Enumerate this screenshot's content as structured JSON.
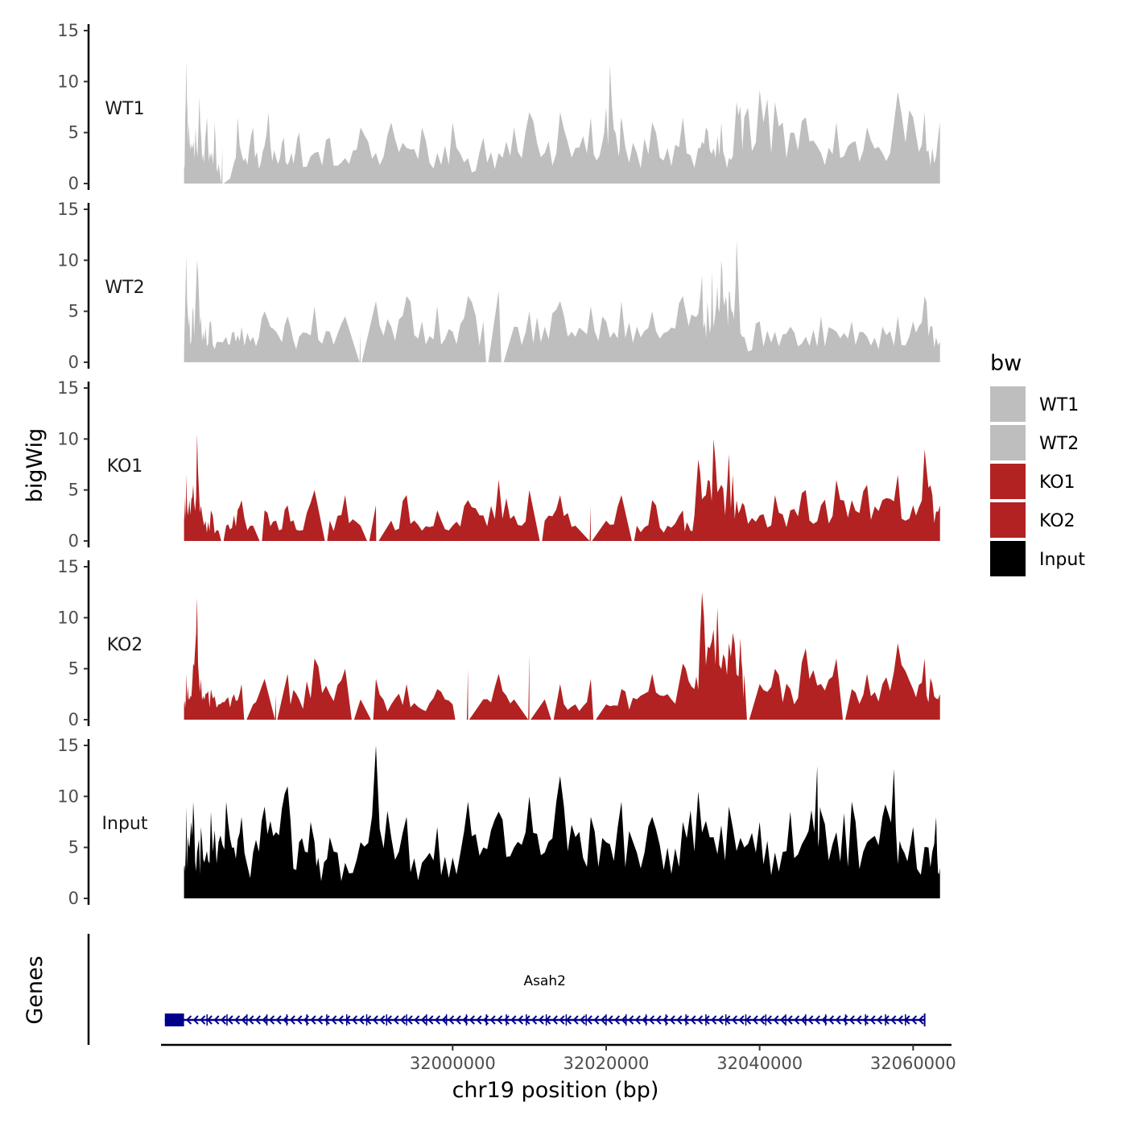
{
  "chart_data": {
    "type": "area",
    "title": "",
    "ylabel": "bigWig",
    "xlabel": "chr19 position (bp)",
    "genes_label": "Genes",
    "x_range": [
      31962000,
      32065000
    ],
    "x_ticks": [
      32000000,
      32020000,
      32040000,
      32060000
    ],
    "y_range": [
      0,
      15
    ],
    "y_ticks": [
      0,
      5,
      10,
      15
    ],
    "legend": {
      "title": "bw",
      "entries": [
        {
          "label": "WT1",
          "color": "#bebebe"
        },
        {
          "label": "WT2",
          "color": "#bebebe"
        },
        {
          "label": "KO1",
          "color": "#b22222"
        },
        {
          "label": "KO2",
          "color": "#b22222"
        },
        {
          "label": "Input",
          "color": "#000000"
        }
      ]
    },
    "tracks": [
      {
        "name": "WT1",
        "color": "#bebebe",
        "x": [
          31965000,
          31965300,
          31965600,
          31966000,
          31966500,
          31967000,
          31967500,
          31968000,
          31968500,
          31969000,
          31969500,
          31970000,
          31971000,
          31972000,
          31973000,
          31974000,
          31975000,
          31976000,
          31977000,
          31978000,
          31979000,
          31980000,
          31982000,
          31984000,
          31986000,
          31988000,
          31990000,
          31992000,
          31994000,
          31996000,
          31998000,
          32000000,
          32002000,
          32004000,
          32006000,
          32008000,
          32010000,
          32012000,
          32014000,
          32016000,
          32018000,
          32019500,
          32020500,
          32021500,
          32022000,
          32024000,
          32026000,
          32028000,
          32030000,
          32032000,
          32033000,
          32034000,
          32035000,
          32036000,
          32037000,
          32038000,
          32040000,
          32042000,
          32044000,
          32046000,
          32048000,
          32050000,
          32052000,
          32054000,
          32056000,
          32058000,
          32060000,
          32061500,
          32062500,
          32063500
        ],
        "values": [
          1.5,
          12.2,
          6.0,
          3.5,
          5.5,
          8.5,
          3.0,
          6.5,
          2.5,
          6.0,
          2.0,
          3.5,
          0.5,
          6.5,
          2.5,
          5.5,
          2.0,
          7.0,
          2.5,
          4.5,
          3.0,
          5.0,
          3.0,
          4.5,
          2.5,
          5.5,
          3.0,
          6.0,
          3.5,
          5.5,
          3.0,
          6.0,
          2.5,
          4.5,
          3.0,
          5.5,
          7.0,
          3.0,
          7.0,
          3.5,
          6.5,
          4.0,
          11.7,
          3.5,
          6.5,
          3.0,
          6.0,
          3.5,
          6.5,
          3.5,
          5.5,
          3.5,
          6.0,
          2.5,
          8.0,
          6.5,
          9.2,
          8.0,
          5.0,
          6.5,
          3.0,
          6.0,
          4.0,
          5.5,
          3.0,
          9.0,
          6.5,
          7.0,
          3.5,
          6.0
        ],
        "zero_at": [
          31970000
        ]
      },
      {
        "name": "WT2",
        "color": "#bebebe",
        "x": [
          31965000,
          31965300,
          31965700,
          31966200,
          31966700,
          31967200,
          31967800,
          31968500,
          31969500,
          31970500,
          31971500,
          31972500,
          31974000,
          31975500,
          31977000,
          31978500,
          31980000,
          31982000,
          31984000,
          31986000,
          31988000,
          31990000,
          31992000,
          31994000,
          31996000,
          31998000,
          32000000,
          32002000,
          32004000,
          32006000,
          32008000,
          32010000,
          32012000,
          32014000,
          32016000,
          32018000,
          32020000,
          32022000,
          32024000,
          32026000,
          32028000,
          32030000,
          32031500,
          32032500,
          32033200,
          32033800,
          32034500,
          32035000,
          32035500,
          32036000,
          32036500,
          32037000,
          32038000,
          32040000,
          32042000,
          32044000,
          32046000,
          32048000,
          32050000,
          32052000,
          32054000,
          32056000,
          32058000,
          32060000,
          32061500,
          32062500,
          32063500
        ],
        "values": [
          1.0,
          10.5,
          4.5,
          5.5,
          10.0,
          4.5,
          3.5,
          4.0,
          2.0,
          2.5,
          3.0,
          3.5,
          2.5,
          5.0,
          3.0,
          4.5,
          2.5,
          5.5,
          3.0,
          4.5,
          3.0,
          6.0,
          3.5,
          6.5,
          4.0,
          5.5,
          3.0,
          6.5,
          4.0,
          7.0,
          3.5,
          5.0,
          3.5,
          6.0,
          2.5,
          5.5,
          4.0,
          6.0,
          3.5,
          5.0,
          3.0,
          6.5,
          4.5,
          8.5,
          6.0,
          9.0,
          7.5,
          10.0,
          6.0,
          7.0,
          5.0,
          12.0,
          2.5,
          4.0,
          3.0,
          3.5,
          2.5,
          4.5,
          3.0,
          4.0,
          2.5,
          3.5,
          4.5,
          4.0,
          6.5,
          3.5,
          2.0
        ],
        "zero_at": [
          31988000,
          32004500,
          32006500
        ]
      },
      {
        "name": "KO1",
        "color": "#b22222",
        "x": [
          31965000,
          31965300,
          31965700,
          31966200,
          31966700,
          31967200,
          31967800,
          31968500,
          31969500,
          31970500,
          31971500,
          31972500,
          31974000,
          31975500,
          31977000,
          31978500,
          31980000,
          31982000,
          31984000,
          31986000,
          31988000,
          31990000,
          31992000,
          31994000,
          31996000,
          31998000,
          32000000,
          32002000,
          32004000,
          32006000,
          32008000,
          32010000,
          32012000,
          32014000,
          32016000,
          32018000,
          32020000,
          32022000,
          32024000,
          32026000,
          32028000,
          32030000,
          32031000,
          32032000,
          32033000,
          32034000,
          32035000,
          32036000,
          32037000,
          32038000,
          32040000,
          32042000,
          32044000,
          32046000,
          32048000,
          32050000,
          32052000,
          32054000,
          32056000,
          32058000,
          32060000,
          32061500,
          32062500,
          32063500
        ],
        "values": [
          2.0,
          6.5,
          4.0,
          5.5,
          10.5,
          3.5,
          2.0,
          3.0,
          1.0,
          1.5,
          2.5,
          4.0,
          1.5,
          3.0,
          2.0,
          3.5,
          1.0,
          5.0,
          2.0,
          4.5,
          1.5,
          3.5,
          2.0,
          4.5,
          1.0,
          3.0,
          1.5,
          4.0,
          2.5,
          6.0,
          2.5,
          5.0,
          2.0,
          4.5,
          1.5,
          3.5,
          2.0,
          4.5,
          1.5,
          4.0,
          1.5,
          3.0,
          1.0,
          8.0,
          4.5,
          10.0,
          5.5,
          8.5,
          4.0,
          3.5,
          2.5,
          4.5,
          3.0,
          5.0,
          3.5,
          6.0,
          4.0,
          5.5,
          4.0,
          6.5,
          3.5,
          9.0,
          4.5,
          3.5
        ],
        "zero_at": [
          31970000,
          31975000,
          31983500,
          31989000,
          31990200,
          32011500,
          32018000,
          32023500
        ]
      },
      {
        "name": "KO2",
        "color": "#b22222",
        "x": [
          31965000,
          31965300,
          31965700,
          31966200,
          31966700,
          31967200,
          31967800,
          31968500,
          31969500,
          31970500,
          31971500,
          31972500,
          31974000,
          31975500,
          31977000,
          31978500,
          31980000,
          31982000,
          31984000,
          31986000,
          31988000,
          31990000,
          31992000,
          31994000,
          31996000,
          31998000,
          32000000,
          32002000,
          32004000,
          32006000,
          32008000,
          32010000,
          32012000,
          32014000,
          32016000,
          32018000,
          32020000,
          32022000,
          32024000,
          32026000,
          32028000,
          32030000,
          32031500,
          32032500,
          32033500,
          32034500,
          32035500,
          32036500,
          32037500,
          32038000,
          32040000,
          32042000,
          32044000,
          32046000,
          32048000,
          32050000,
          32052000,
          32054000,
          32056000,
          32058000,
          32060000,
          32061500,
          32062500,
          32063500
        ],
        "values": [
          1.5,
          4.5,
          2.0,
          5.5,
          12.0,
          4.0,
          2.5,
          3.0,
          1.5,
          2.0,
          2.5,
          3.5,
          1.5,
          4.0,
          2.5,
          4.5,
          2.0,
          6.0,
          2.5,
          5.0,
          2.0,
          4.0,
          1.5,
          3.5,
          1.0,
          3.0,
          1.5,
          5.0,
          2.0,
          4.5,
          2.0,
          6.5,
          2.0,
          3.5,
          1.5,
          4.0,
          1.5,
          3.0,
          2.0,
          4.5,
          2.5,
          5.5,
          3.0,
          12.5,
          7.0,
          11.0,
          6.0,
          8.5,
          8.0,
          4.5,
          3.5,
          5.0,
          3.0,
          7.0,
          3.5,
          6.0,
          3.0,
          4.5,
          3.5,
          7.5,
          3.0,
          6.0,
          3.5,
          2.5
        ],
        "zero_at": [
          31973000,
          31977000,
          31987000,
          31989500,
          32000500,
          32002000,
          32010000,
          32013000,
          32018500,
          32038500,
          32051000
        ]
      },
      {
        "name": "Input",
        "color": "#000000",
        "x": [
          31965000,
          31965300,
          31965700,
          31966200,
          31966700,
          31967200,
          31967800,
          31968500,
          31969500,
          31970500,
          31971500,
          31972500,
          31974000,
          31975500,
          31977000,
          31978500,
          31980000,
          31981500,
          31982500,
          31984000,
          31986000,
          31988000,
          31990000,
          31992000,
          31994000,
          31996000,
          31998000,
          32000000,
          32002000,
          32004000,
          32006000,
          32008000,
          32010000,
          32012000,
          32014000,
          32016000,
          32018000,
          32020000,
          32022000,
          32024000,
          32026000,
          32028000,
          32030000,
          32032000,
          32034000,
          32036000,
          32038000,
          32040000,
          32042000,
          32044000,
          32046000,
          32047500,
          32048000,
          32050000,
          32052000,
          32054000,
          32056000,
          32057500,
          32058500,
          32060000,
          32062000,
          32063000,
          32063500
        ],
        "values": [
          3.0,
          9.0,
          5.0,
          9.5,
          4.5,
          7.0,
          4.0,
          8.5,
          5.5,
          9.5,
          5.0,
          8.0,
          4.5,
          9.0,
          6.5,
          11.0,
          5.5,
          7.5,
          4.0,
          6.0,
          3.5,
          5.5,
          15.0,
          6.0,
          8.0,
          3.5,
          7.0,
          4.0,
          9.5,
          5.0,
          8.5,
          5.0,
          10.0,
          4.5,
          12.0,
          6.0,
          8.0,
          5.5,
          9.5,
          4.5,
          8.0,
          5.0,
          7.5,
          10.5,
          6.0,
          9.0,
          5.0,
          7.5,
          4.5,
          8.5,
          6.0,
          13.0,
          8.5,
          6.5,
          9.5,
          5.5,
          8.0,
          12.7,
          5.0,
          7.0,
          5.0,
          8.0,
          3.0
        ],
        "zero_at": []
      }
    ],
    "gene": {
      "name": "Asah2",
      "start": 31962500,
      "end": 32061500,
      "strand": "-",
      "color": "#00008b",
      "exon_start": 31962500,
      "exon_end": 31965000
    }
  }
}
